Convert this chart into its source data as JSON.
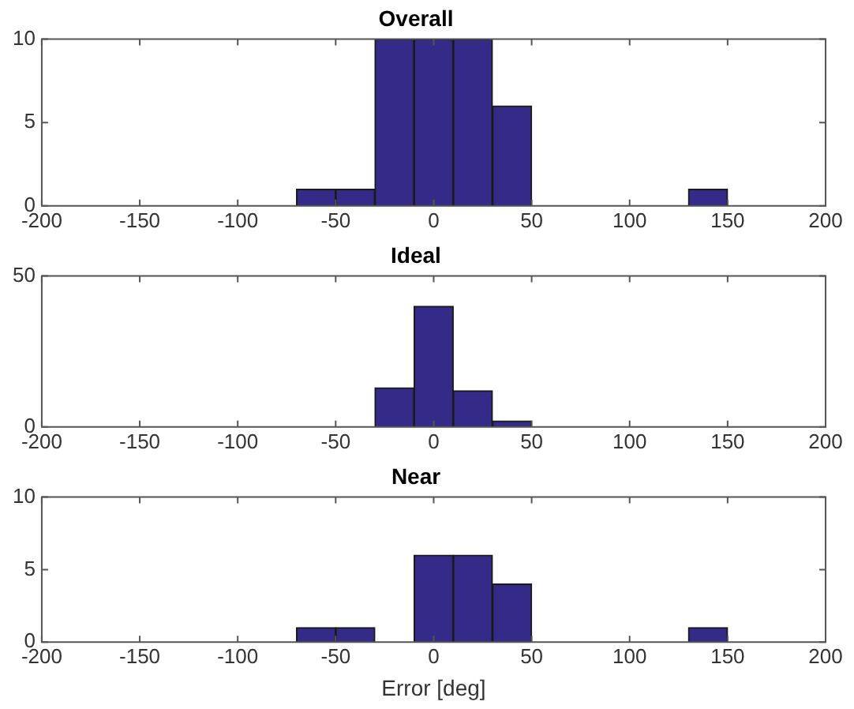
{
  "chart_data": [
    {
      "type": "histogram",
      "title": "Overall",
      "bins": [
        -70,
        -50,
        -30,
        -10,
        10,
        30,
        50,
        70,
        90,
        110,
        130,
        150
      ],
      "values": [
        1,
        1,
        10,
        10,
        10,
        6,
        0,
        0,
        0,
        0,
        1
      ],
      "color": "#352a87",
      "xlim": [
        -200,
        200
      ],
      "xticks": [
        -200,
        -150,
        -100,
        -50,
        0,
        50,
        100,
        150,
        200
      ],
      "ylim": [
        0,
        10
      ],
      "yticks": [
        0,
        5,
        10
      ],
      "grid": false,
      "legend": false
    },
    {
      "type": "histogram",
      "title": "Ideal",
      "bins": [
        -70,
        -50,
        -30,
        -10,
        10,
        30,
        50,
        70,
        90,
        110,
        130,
        150
      ],
      "values": [
        0,
        0,
        13,
        40,
        12,
        2,
        0,
        0,
        0,
        0,
        0
      ],
      "color": "#352a87",
      "xlim": [
        -200,
        200
      ],
      "xticks": [
        -200,
        -150,
        -100,
        -50,
        0,
        50,
        100,
        150,
        200
      ],
      "ylim": [
        0,
        50
      ],
      "yticks": [
        0,
        50
      ],
      "grid": false,
      "legend": false
    },
    {
      "type": "histogram",
      "title": "Near",
      "xlabel": "Error [deg]",
      "bins": [
        -70,
        -50,
        -30,
        -10,
        10,
        30,
        50,
        70,
        90,
        110,
        130,
        150
      ],
      "values": [
        1,
        1,
        0,
        6,
        6,
        4,
        0,
        0,
        0,
        0,
        1
      ],
      "color": "#352a87",
      "xlim": [
        -200,
        200
      ],
      "xticks": [
        -200,
        -150,
        -100,
        -50,
        0,
        50,
        100,
        150,
        200
      ],
      "ylim": [
        0,
        10
      ],
      "yticks": [
        0,
        5,
        10
      ],
      "grid": false,
      "legend": false
    }
  ]
}
